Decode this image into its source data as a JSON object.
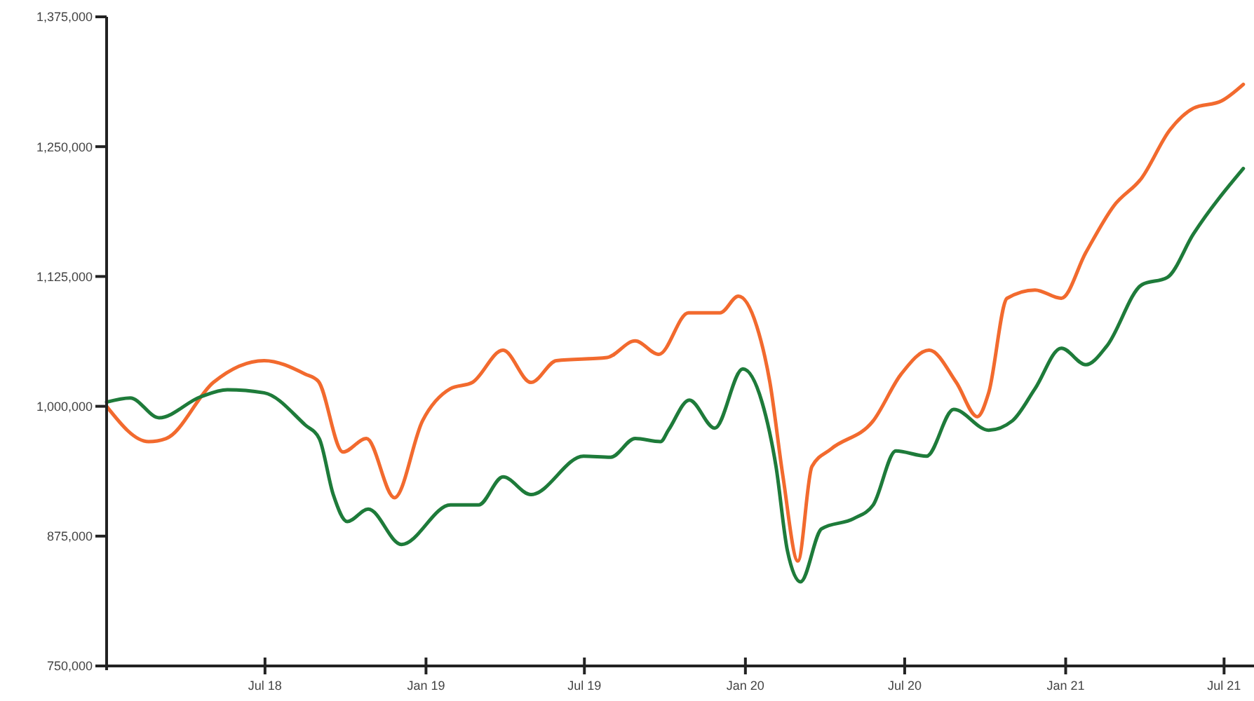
{
  "chart_data": {
    "type": "line",
    "xlim": [
      "2018-01-01",
      "2021-08-01"
    ],
    "ylim": [
      750000,
      1375000
    ],
    "xticks": [
      {
        "value": "2018-07-01",
        "label": "Jul 18"
      },
      {
        "value": "2019-01-01",
        "label": "Jan 19"
      },
      {
        "value": "2019-07-01",
        "label": "Jul 19"
      },
      {
        "value": "2020-01-01",
        "label": "Jan 20"
      },
      {
        "value": "2020-07-01",
        "label": "Jul 20"
      },
      {
        "value": "2021-01-01",
        "label": "Jan 21"
      },
      {
        "value": "2021-07-01",
        "label": "Jul 21"
      }
    ],
    "yticks": [
      {
        "value": 750000,
        "label": "750,000"
      },
      {
        "value": 875000,
        "label": "875,000"
      },
      {
        "value": 1000000,
        "label": "1,000,000"
      },
      {
        "value": 1125000,
        "label": "1,125,000"
      },
      {
        "value": 1250000,
        "label": "1,250,000"
      },
      {
        "value": 1375000,
        "label": "1,375,000"
      }
    ],
    "grid": false,
    "marker": "none",
    "line_style": "solid",
    "series": [
      {
        "color": "#f26a2e",
        "x": [
          "2018-01-01",
          "2018-02-18",
          "2018-03-10",
          "2018-05-03",
          "2018-06-30",
          "2018-08-16",
          "2018-08-31",
          "2018-09-28",
          "2018-10-25",
          "2018-11-26",
          "2018-12-28",
          "2019-01-29",
          "2019-02-23",
          "2019-03-30",
          "2019-05-01",
          "2019-05-30",
          "2019-07-27",
          "2019-08-28",
          "2019-09-24",
          "2019-10-28",
          "2019-11-06",
          "2019-12-03",
          "2019-12-24",
          "2020-01-14",
          "2020-01-29",
          "2020-02-13",
          "2020-03-01",
          "2020-03-17",
          "2020-04-08",
          "2020-05-26",
          "2020-06-27",
          "2020-07-29",
          "2020-08-29",
          "2020-09-22",
          "2020-10-05",
          "2020-10-26",
          "2020-11-27",
          "2020-12-27",
          "2021-01-24",
          "2021-02-25",
          "2021-03-29",
          "2021-04-30",
          "2021-05-27",
          "2021-06-28",
          "2021-07-23"
        ],
        "values": [
          1000000,
          966000,
          969000,
          1023000,
          1044000,
          1031000,
          1024000,
          956000,
          969000,
          912000,
          986000,
          1017000,
          1023000,
          1054000,
          1023000,
          1044000,
          1047000,
          1063000,
          1050000,
          1090000,
          1090000,
          1090000,
          1106000,
          1077000,
          1023000,
          932000,
          851000,
          942000,
          959000,
          986000,
          1031000,
          1054000,
          1023000,
          990000,
          1013000,
          1104000,
          1112000,
          1104000,
          1148000,
          1193000,
          1220000,
          1266000,
          1287000,
          1294000,
          1310000
        ]
      },
      {
        "color": "#1e7b3a",
        "x": [
          "2018-01-01",
          "2018-01-28",
          "2018-03-02",
          "2018-04-18",
          "2018-05-19",
          "2018-06-30",
          "2018-08-16",
          "2018-09-01",
          "2018-09-17",
          "2018-10-03",
          "2018-10-27",
          "2018-12-04",
          "2019-01-29",
          "2019-03-02",
          "2019-03-30",
          "2019-05-01",
          "2019-06-30",
          "2019-07-31",
          "2019-08-28",
          "2019-09-26",
          "2019-10-05",
          "2019-10-29",
          "2019-11-27",
          "2019-12-29",
          "2020-01-20",
          "2020-02-05",
          "2020-02-18",
          "2020-03-04",
          "2020-03-28",
          "2020-05-04",
          "2020-05-26",
          "2020-06-21",
          "2020-07-26",
          "2020-08-26",
          "2020-10-05",
          "2020-11-01",
          "2020-11-27",
          "2020-12-27",
          "2021-01-24",
          "2021-02-17",
          "2021-03-29",
          "2021-04-27",
          "2021-05-27",
          "2021-07-23"
        ],
        "values": [
          1004000,
          1008000,
          989000,
          1009000,
          1016000,
          1013000,
          982000,
          969000,
          915000,
          889000,
          901000,
          867000,
          905000,
          905000,
          932000,
          915000,
          952000,
          951000,
          969000,
          966000,
          977000,
          1006000,
          979000,
          1036000,
          1004000,
          942000,
          861000,
          831000,
          882000,
          892000,
          905000,
          957000,
          952000,
          997000,
          977000,
          986000,
          1017000,
          1056000,
          1040000,
          1058000,
          1117000,
          1124000,
          1166000,
          1229000
        ]
      }
    ]
  }
}
